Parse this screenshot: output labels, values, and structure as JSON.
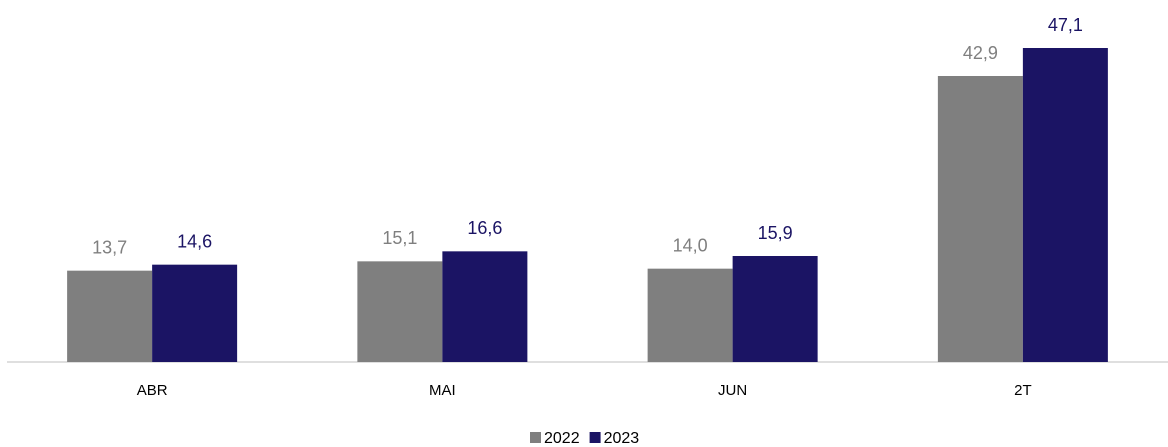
{
  "chart_data": {
    "type": "bar",
    "categories": [
      "ABR",
      "MAI",
      "JUN",
      "2T"
    ],
    "series": [
      {
        "name": "2022",
        "color": "#7f7f7f",
        "values": [
          13.7,
          15.1,
          14.0,
          42.9
        ],
        "value_labels": [
          "13,7",
          "15,1",
          "14,0",
          "42,9"
        ]
      },
      {
        "name": "2023",
        "color": "#1b1464",
        "values": [
          14.6,
          16.6,
          15.9,
          47.1
        ],
        "value_labels": [
          "14,6",
          "16,6",
          "15,9",
          "47,1"
        ]
      }
    ],
    "legend": "bottom"
  }
}
